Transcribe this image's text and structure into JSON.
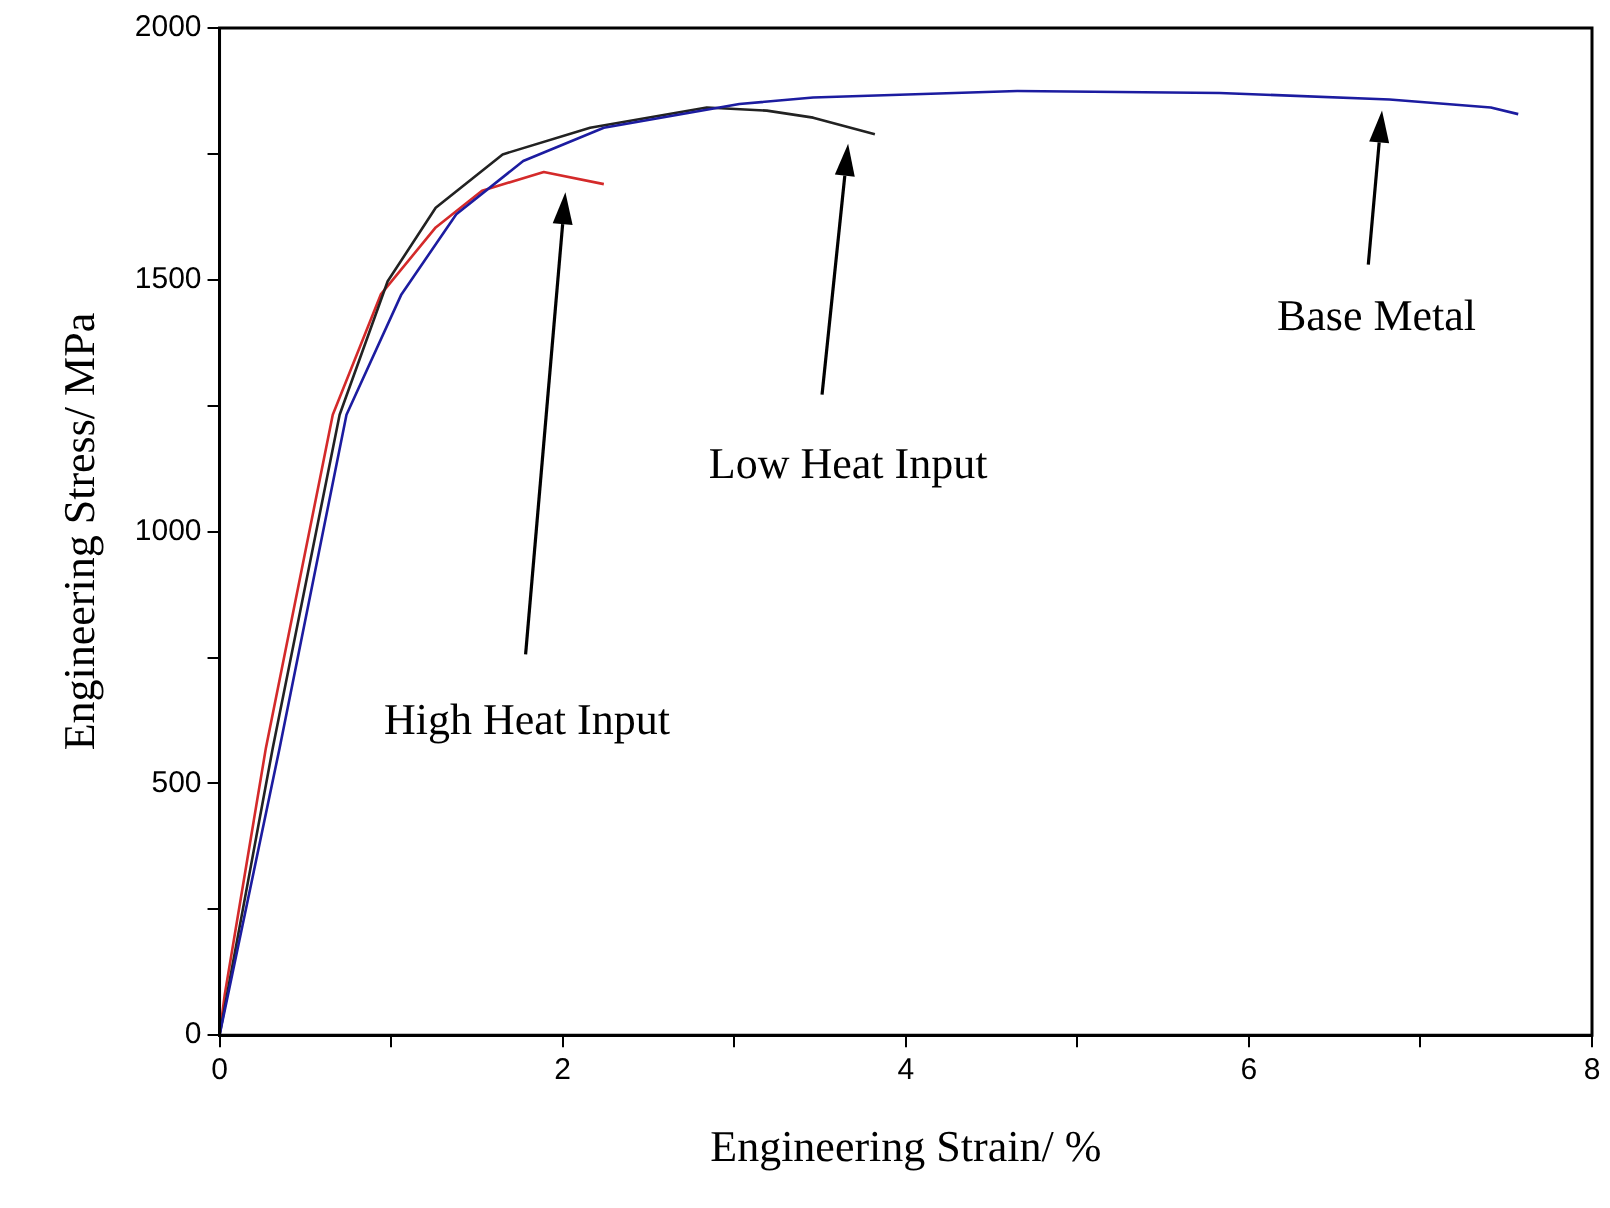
{
  "chart_data": {
    "type": "line",
    "xlabel": "Engineering Strain/ %",
    "ylabel": "Engineering Stress/ MPa",
    "xlim": [
      0,
      8
    ],
    "ylim": [
      0,
      2000
    ],
    "xticks": [
      0,
      {
        "value": 1,
        "label": null
      },
      2,
      {
        "value": 3,
        "label": null
      },
      4,
      {
        "value": 5,
        "label": null
      },
      6,
      {
        "value": 7,
        "label": null
      },
      8
    ],
    "yticks": [
      0,
      {
        "value": 250,
        "label": null
      },
      500,
      {
        "value": 750,
        "label": null
      },
      1000,
      {
        "value": 1250,
        "label": null
      },
      1500,
      {
        "value": 1750,
        "label": null
      },
      2000
    ],
    "grid": false,
    "legend": false,
    "marker": "none",
    "line_style": "solid",
    "series": [
      {
        "color": "#1c1ca0",
        "x": [
          0,
          0.35,
          0.74,
          1.06,
          1.38,
          1.77,
          2.24,
          3.03,
          3.46,
          4.65,
          5.83,
          6.82,
          7.41,
          7.57
        ],
        "values": [
          0,
          570,
          1232,
          1471,
          1630,
          1736,
          1802,
          1849,
          1862,
          1875,
          1871,
          1858,
          1842,
          1829
        ]
      },
      {
        "color": "#222222",
        "x": [
          0,
          0.31,
          0.7,
          0.98,
          1.26,
          1.65,
          2.16,
          2.84,
          3.19,
          3.46,
          3.82
        ],
        "values": [
          0,
          570,
          1232,
          1497,
          1643,
          1749,
          1802,
          1842,
          1836,
          1822,
          1789
        ]
      },
      {
        "color": "#d42a2a",
        "x": [
          0,
          0.03,
          0.27,
          0.66,
          0.94,
          1.26,
          1.53,
          1.89,
          2.24
        ],
        "values": [
          0,
          80,
          570,
          1232,
          1471,
          1604,
          1677,
          1714,
          1690
        ]
      }
    ],
    "annotations": [
      "High Heat Input",
      "Low Heat Input",
      "Base Metal"
    ]
  }
}
